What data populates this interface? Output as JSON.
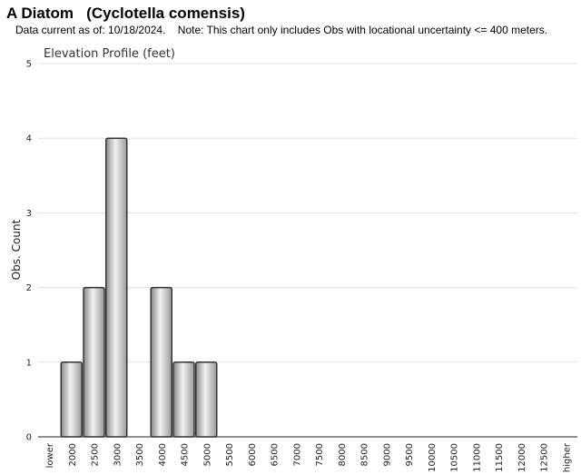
{
  "header": {
    "title": "A Diatom   (Cyclotella comensis)",
    "subtitle": "Data current as of: 10/18/2024.    Note: This chart only includes Obs with locational uncertainty <= 400 meters."
  },
  "chart_data": {
    "type": "bar",
    "title": "Elevation Profile (feet)",
    "xlabel": "",
    "ylabel": "Obs. Count",
    "ylim": [
      0,
      5
    ],
    "yticks": [
      0,
      1,
      2,
      3,
      4,
      5
    ],
    "grid": true,
    "categories": [
      "lower",
      "2000",
      "2500",
      "3000",
      "3500",
      "4000",
      "4500",
      "5000",
      "5500",
      "6000",
      "6500",
      "7000",
      "7500",
      "8000",
      "8500",
      "9000",
      "9500",
      "10000",
      "10500",
      "11000",
      "11500",
      "12000",
      "12500",
      "higher"
    ],
    "values": [
      0,
      1,
      2,
      4,
      0,
      2,
      1,
      1,
      0,
      0,
      0,
      0,
      0,
      0,
      0,
      0,
      0,
      0,
      0,
      0,
      0,
      0,
      0,
      0
    ]
  }
}
